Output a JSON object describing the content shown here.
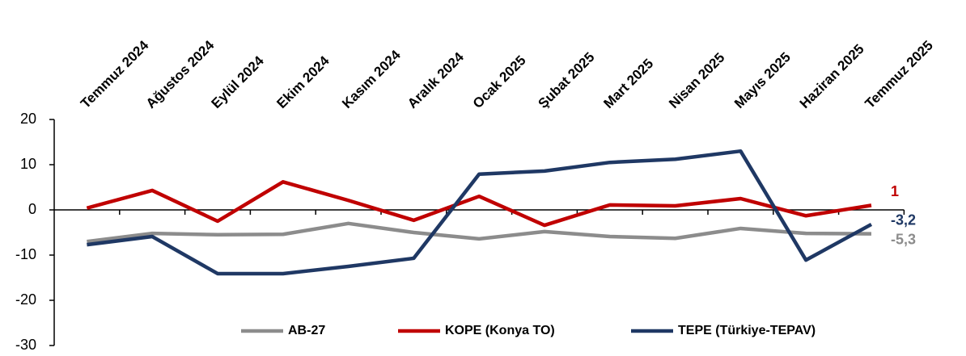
{
  "chart_data": {
    "type": "line",
    "categories": [
      "Temmuz 2024",
      "Ağustos 2024",
      "Eylül 2024",
      "Ekim 2024",
      "Kasım 2024",
      "Aralık 2024",
      "Ocak 2025",
      "Şubat 2025",
      "Mart 2025",
      "Nisan 2025",
      "Mayıs 2025",
      "Haziran 2025",
      "Temmuz 2025"
    ],
    "series": [
      {
        "name": "AB-27",
        "color": "#8c8c8c",
        "values": [
          -7.0,
          -5.2,
          -5.5,
          -5.4,
          -3.0,
          -5.0,
          -6.4,
          -4.8,
          -5.9,
          -6.3,
          -4.1,
          -5.2,
          -5.3
        ],
        "value_labels": [
          null,
          null,
          null,
          null,
          null,
          null,
          null,
          null,
          null,
          null,
          null,
          null,
          "-5,3"
        ]
      },
      {
        "name": "KOPE (Konya TO)",
        "color": "#c00000",
        "values": [
          0.4,
          4.3,
          -2.5,
          6.2,
          2.1,
          -2.3,
          3.0,
          -3.4,
          1.1,
          0.9,
          2.5,
          -1.3,
          1
        ],
        "value_labels": [
          null,
          null,
          null,
          null,
          null,
          null,
          null,
          null,
          null,
          null,
          null,
          null,
          "1"
        ]
      },
      {
        "name": "TEPE (Türkiye-TEPAV)",
        "color": "#1f3864",
        "values": [
          -7.7,
          -5.9,
          -14.1,
          -14.1,
          -12.5,
          -10.7,
          7.9,
          8.6,
          10.5,
          11.2,
          13.0,
          -11.1,
          -3.2
        ],
        "value_labels": [
          null,
          null,
          null,
          null,
          null,
          null,
          null,
          null,
          null,
          null,
          null,
          null,
          "-3,2"
        ]
      }
    ],
    "ylim": [
      -30,
      20
    ],
    "yticks": [
      -30,
      -20,
      -10,
      0,
      10,
      20
    ],
    "legend": "bottom"
  }
}
